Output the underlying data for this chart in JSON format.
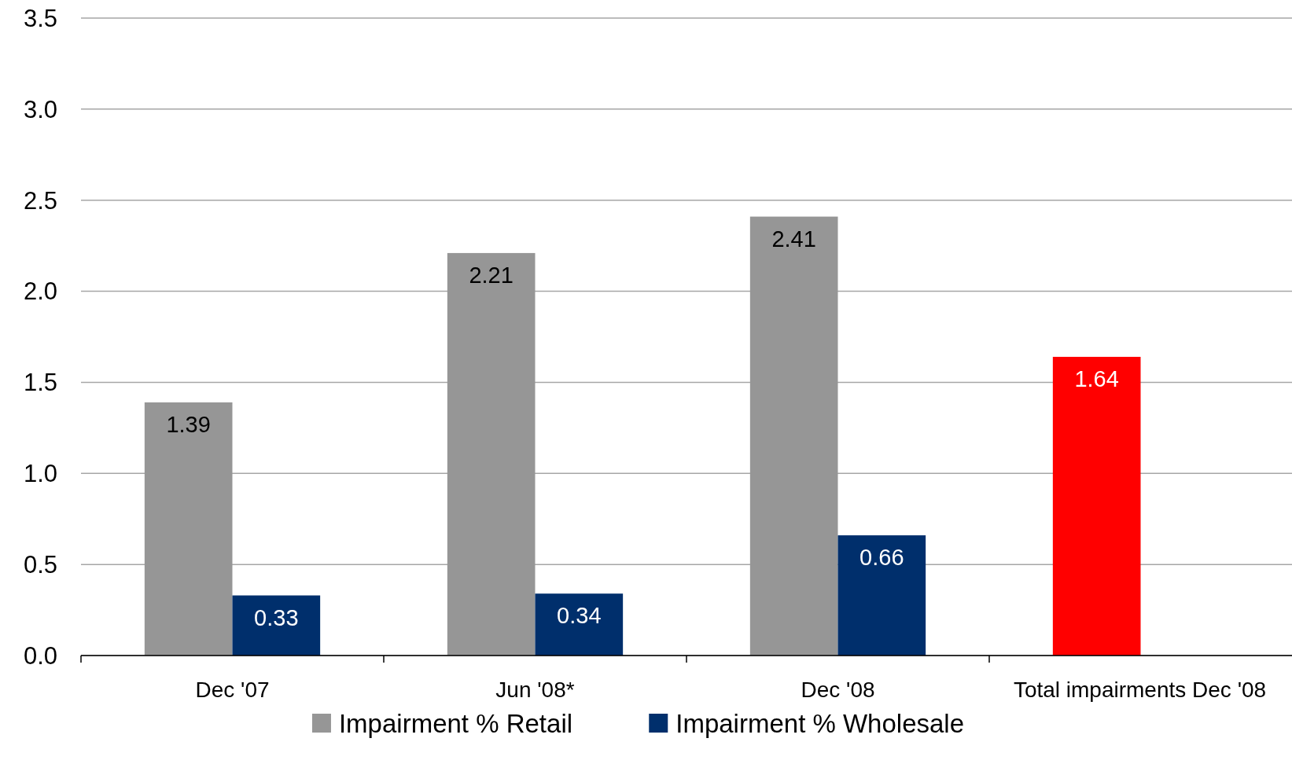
{
  "chart_data": {
    "type": "bar",
    "categories": [
      "Dec '07",
      "Jun '08*",
      "Dec '08",
      "Total impairments Dec '08"
    ],
    "series": [
      {
        "name": "Impairment % Retail",
        "color": "#969696",
        "colors": [
          "#969696",
          "#969696",
          "#969696",
          "#ff0000"
        ],
        "values": [
          1.39,
          2.21,
          2.41,
          1.64
        ]
      },
      {
        "name": "Impairment % Wholesale",
        "color": "#002f6c",
        "values": [
          0.33,
          0.34,
          0.66,
          null
        ]
      }
    ],
    "ylim": [
      0,
      3.5
    ],
    "yticks": [
      {
        "value": 0,
        "label": "0.0"
      },
      {
        "value": 0.5,
        "label": "0.5"
      },
      {
        "value": 1,
        "label": "1.0"
      },
      {
        "value": 1.5,
        "label": "1.5"
      },
      {
        "value": 2,
        "label": "2.0"
      },
      {
        "value": 2.5,
        "label": "2.5"
      },
      {
        "value": 3,
        "label": "3.0"
      },
      {
        "value": 3.5,
        "label": "3.5"
      }
    ],
    "grid": "y",
    "legend": "bottom",
    "data_labels": true
  }
}
